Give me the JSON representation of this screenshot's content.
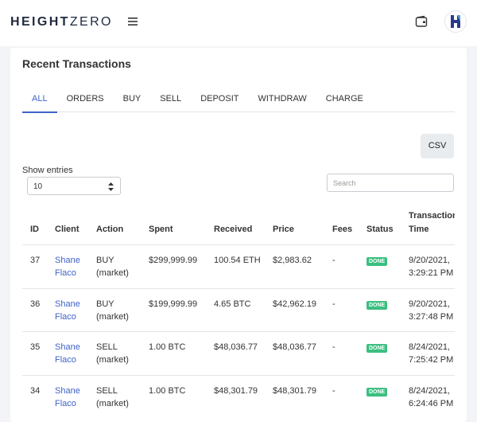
{
  "header": {
    "brand_bold": "HEIGHT",
    "brand_light": "ZERO"
  },
  "card": {
    "title": "Recent Transactions",
    "tabs": [
      "ALL",
      "ORDERS",
      "BUY",
      "SELL",
      "DEPOSIT",
      "WITHDRAW",
      "CHARGE"
    ],
    "csv_button": "CSV",
    "show_entries": "Show entries",
    "entries_value": "10",
    "search_placeholder": "Search"
  },
  "table": {
    "columns": [
      "ID",
      "Client",
      "Action",
      "Spent",
      "Received",
      "Price",
      "Fees",
      "Status",
      "Transaction Time"
    ],
    "rows": [
      [
        "37",
        "Shane Flaco",
        "BUY (market)",
        "$299,999.99",
        "100.54 ETH",
        "$2,983.62",
        "-",
        "DONE",
        "9/20/2021, 3:29:21 PM"
      ],
      [
        "36",
        "Shane Flaco",
        "BUY (market)",
        "$199,999.99",
        "4.65 BTC",
        "$42,962.19",
        "-",
        "DONE",
        "9/20/2021, 3:27:48 PM"
      ],
      [
        "35",
        "Shane Flaco",
        "SELL (market)",
        "1.00 BTC",
        "$48,036.77",
        "$48,036.77",
        "-",
        "DONE",
        "8/24/2021, 7:25:42 PM"
      ],
      [
        "34",
        "Shane Flaco",
        "SELL (market)",
        "1.00 BTC",
        "$48,301.79",
        "$48,301.79",
        "-",
        "DONE",
        "8/24/2021, 6:24:46 PM"
      ]
    ]
  }
}
